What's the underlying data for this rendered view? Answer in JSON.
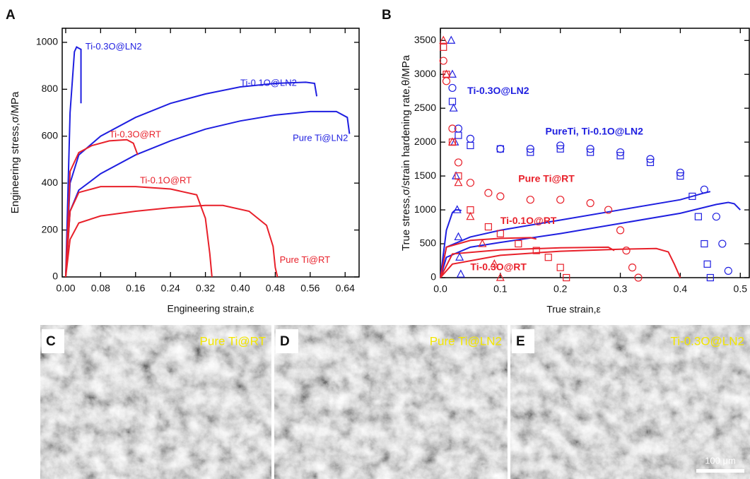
{
  "chart_data": [
    {
      "type": "line",
      "panel": "A",
      "x_label": "Engineering strain,ε",
      "y_label": "Engineering stress,σ/MPa",
      "xlim": [
        -0.008,
        0.672
      ],
      "ylim": [
        0,
        1060
      ],
      "xticks": [
        {
          "value": 0,
          "label": "0.00"
        },
        {
          "value": 0.08,
          "label": "0.08"
        },
        {
          "value": 0.16,
          "label": "0.16"
        },
        {
          "value": 0.24,
          "label": "0.24"
        },
        {
          "value": 0.32,
          "label": "0.32"
        },
        {
          "value": 0.4,
          "label": "0.40"
        },
        {
          "value": 0.48,
          "label": "0.48"
        },
        {
          "value": 0.56,
          "label": "0.56"
        },
        {
          "value": 0.64,
          "label": "0.64"
        }
      ],
      "yticks": [
        0,
        200,
        400,
        600,
        800,
        1000
      ],
      "series": [
        {
          "name": "Ti-0.3O@LN2",
          "color": "#1f1fe0",
          "x": [
            0,
            0.01,
            0.02,
            0.025,
            0.03,
            0.035,
            0.035
          ],
          "values": [
            0,
            700,
            960,
            980,
            975,
            970,
            740
          ]
        },
        {
          "name": "Ti-0.1O@LN2",
          "color": "#1f1fe0",
          "x": [
            0,
            0.01,
            0.03,
            0.08,
            0.16,
            0.24,
            0.32,
            0.4,
            0.48,
            0.55,
            0.57,
            0.575
          ],
          "values": [
            0,
            400,
            520,
            600,
            680,
            740,
            780,
            810,
            825,
            830,
            825,
            770
          ]
        },
        {
          "name": "Pure Ti@LN2",
          "color": "#1f1fe0",
          "x": [
            0,
            0.01,
            0.03,
            0.08,
            0.16,
            0.24,
            0.32,
            0.4,
            0.48,
            0.56,
            0.62,
            0.645,
            0.65
          ],
          "values": [
            0,
            280,
            370,
            440,
            520,
            580,
            630,
            665,
            690,
            705,
            705,
            680,
            610
          ]
        },
        {
          "name": "Ti-0.3O@RT",
          "color": "#e8202a",
          "x": [
            0,
            0.01,
            0.03,
            0.06,
            0.1,
            0.14,
            0.155,
            0.165
          ],
          "values": [
            0,
            450,
            530,
            560,
            580,
            585,
            570,
            520
          ]
        },
        {
          "name": "Ti-0.1O@RT",
          "color": "#e8202a",
          "x": [
            0,
            0.01,
            0.03,
            0.08,
            0.16,
            0.24,
            0.3,
            0.32,
            0.33,
            0.335
          ],
          "values": [
            0,
            280,
            360,
            385,
            385,
            375,
            350,
            250,
            100,
            0
          ]
        },
        {
          "name": "Pure Ti@RT",
          "color": "#e8202a",
          "x": [
            0,
            0.01,
            0.03,
            0.08,
            0.16,
            0.24,
            0.32,
            0.36,
            0.42,
            0.46,
            0.475,
            0.48,
            0.485
          ],
          "values": [
            0,
            160,
            230,
            260,
            280,
            295,
            305,
            305,
            280,
            220,
            130,
            40,
            0
          ]
        }
      ]
    },
    {
      "type": "line",
      "panel": "B",
      "x_label": "True strain,ε",
      "y_label": "True stress,σ/strain hardening rate,θ/MPa",
      "xlim": [
        0,
        0.515
      ],
      "ylim": [
        0,
        3680
      ],
      "xticks": [
        {
          "value": 0,
          "label": "0.0"
        },
        0.1,
        0.2,
        0.3,
        0.4,
        0.5
      ],
      "yticks": [
        0,
        500,
        1000,
        1500,
        2000,
        2500,
        3000,
        3500
      ],
      "series": [
        {
          "color": "#1f1fe0",
          "x": [
            0,
            0.01,
            0.02,
            0.025,
            0.03,
            0.035
          ],
          "values": [
            0,
            700,
            960,
            1000,
            1000,
            990
          ]
        },
        {
          "color": "#1f1fe0",
          "x": [
            0,
            0.01,
            0.05,
            0.1,
            0.2,
            0.3,
            0.4,
            0.44,
            0.45
          ],
          "values": [
            0,
            450,
            600,
            700,
            850,
            1000,
            1150,
            1250,
            1270
          ]
        },
        {
          "color": "#1f1fe0",
          "x": [
            0,
            0.01,
            0.05,
            0.1,
            0.2,
            0.3,
            0.4,
            0.46,
            0.48,
            0.49,
            0.5
          ],
          "values": [
            0,
            300,
            450,
            520,
            650,
            800,
            950,
            1080,
            1110,
            1090,
            1000
          ]
        },
        {
          "color": "#e8202a",
          "x": [
            0,
            0.01,
            0.05,
            0.1,
            0.15,
            0.16
          ],
          "values": [
            0,
            450,
            550,
            580,
            590,
            570
          ]
        },
        {
          "color": "#e8202a",
          "x": [
            0,
            0.02,
            0.1,
            0.2,
            0.28,
            0.29
          ],
          "values": [
            0,
            350,
            410,
            440,
            450,
            400
          ]
        },
        {
          "color": "#e8202a",
          "x": [
            0,
            0.02,
            0.1,
            0.2,
            0.3,
            0.36,
            0.38,
            0.39,
            0.4
          ],
          "values": [
            0,
            200,
            330,
            390,
            420,
            430,
            380,
            200,
            0
          ]
        },
        {
          "color": "#1f1fe0",
          "marker": "triangle",
          "x": [
            0.018,
            0.02,
            0.022,
            0.024,
            0.026,
            0.028,
            0.03,
            0.032,
            0.034
          ],
          "values": [
            3500,
            3000,
            2500,
            2000,
            1500,
            1000,
            600,
            300,
            50
          ]
        },
        {
          "color": "#1f1fe0",
          "marker": "square",
          "x": [
            0.02,
            0.03,
            0.05,
            0.1,
            0.15,
            0.2,
            0.25,
            0.3,
            0.35,
            0.4,
            0.42,
            0.43,
            0.44,
            0.445,
            0.45
          ],
          "values": [
            2600,
            2100,
            1950,
            1900,
            1850,
            1900,
            1850,
            1800,
            1700,
            1500,
            1200,
            900,
            500,
            200,
            0
          ]
        },
        {
          "color": "#1f1fe0",
          "marker": "circle",
          "x": [
            0.02,
            0.03,
            0.05,
            0.1,
            0.15,
            0.2,
            0.25,
            0.3,
            0.35,
            0.4,
            0.44,
            0.46,
            0.47,
            0.48
          ],
          "values": [
            2800,
            2200,
            2050,
            1900,
            1900,
            1950,
            1900,
            1850,
            1750,
            1550,
            1300,
            900,
            500,
            100
          ]
        },
        {
          "color": "#e8202a",
          "marker": "circle",
          "x": [
            0.005,
            0.01,
            0.02,
            0.03,
            0.05,
            0.08,
            0.1,
            0.15,
            0.2,
            0.25,
            0.28,
            0.3,
            0.31,
            0.32,
            0.33
          ],
          "values": [
            3200,
            2900,
            2200,
            1700,
            1400,
            1250,
            1200,
            1150,
            1150,
            1100,
            1000,
            700,
            400,
            150,
            0
          ]
        },
        {
          "color": "#e8202a",
          "marker": "square",
          "x": [
            0.005,
            0.01,
            0.02,
            0.03,
            0.05,
            0.08,
            0.1,
            0.13,
            0.16,
            0.18,
            0.2,
            0.21
          ],
          "values": [
            3400,
            3000,
            2000,
            1500,
            1000,
            750,
            650,
            500,
            400,
            300,
            150,
            0
          ]
        },
        {
          "color": "#e8202a",
          "marker": "triangle",
          "x": [
            0.005,
            0.01,
            0.02,
            0.03,
            0.05,
            0.07,
            0.09,
            0.1
          ],
          "values": [
            3500,
            3000,
            2000,
            1400,
            900,
            500,
            200,
            0
          ]
        }
      ],
      "annotations": [
        {
          "text": "Ti-0.3O@LN2",
          "color": "#1f1fe0"
        },
        {
          "text": "PureTi, Ti-0.1O@LN2",
          "color": "#1f1fe0"
        },
        {
          "text": "Pure Ti@RT",
          "color": "#e8202a"
        },
        {
          "text": "Ti-0.1O@RT",
          "color": "#e8202a"
        },
        {
          "text": "Ti-0.3O@RT",
          "color": "#e8202a"
        }
      ]
    }
  ],
  "images": [
    {
      "panel": "C",
      "caption": "Pure Ti@RT"
    },
    {
      "panel": "D",
      "caption": "Pure Ti@LN2"
    },
    {
      "panel": "E",
      "caption": "Ti-0.3O@LN2"
    }
  ],
  "scale_bar": "100 μm"
}
